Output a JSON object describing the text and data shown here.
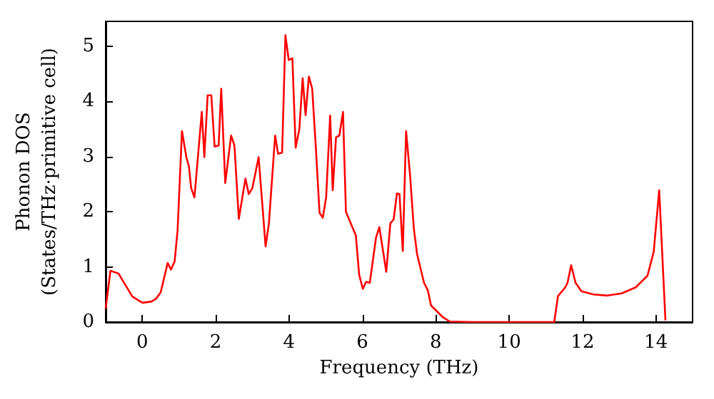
{
  "chart_data": {
    "type": "line",
    "xlabel": "Frequency (THz)",
    "ylabel": "Phonon DOS\n(States/THz·primitive cell)",
    "x": [
      -1.0,
      -0.87,
      -0.65,
      -0.46,
      -0.27,
      0.0,
      0.24,
      0.37,
      0.5,
      0.69,
      0.78,
      0.88,
      0.96,
      1.08,
      1.2,
      1.27,
      1.33,
      1.42,
      1.62,
      1.69,
      1.78,
      1.88,
      1.97,
      2.08,
      2.15,
      2.26,
      2.42,
      2.51,
      2.63,
      2.81,
      2.9,
      3.0,
      3.17,
      3.36,
      3.45,
      3.62,
      3.7,
      3.81,
      3.9,
      3.99,
      4.09,
      4.18,
      4.28,
      4.37,
      4.45,
      4.54,
      4.63,
      4.73,
      4.83,
      4.92,
      5.01,
      5.12,
      5.19,
      5.28,
      5.37,
      5.47,
      5.55,
      5.82,
      5.91,
      6.01,
      6.1,
      6.2,
      6.37,
      6.46,
      6.65,
      6.76,
      6.85,
      6.94,
      7.01,
      7.1,
      7.19,
      7.3,
      7.4,
      7.49,
      7.68,
      7.78,
      7.87,
      8.19,
      8.38,
      9.0,
      10.0,
      11.0,
      11.23,
      11.33,
      11.53,
      11.59,
      11.69,
      11.81,
      11.97,
      12.3,
      12.68,
      13.07,
      13.45,
      13.77,
      13.94,
      14.09,
      14.26
    ],
    "series": [
      {
        "color": "#ff0000",
        "values": [
          0.24,
          0.93,
          0.88,
          0.67,
          0.46,
          0.35,
          0.37,
          0.42,
          0.54,
          1.07,
          0.95,
          1.1,
          1.66,
          3.46,
          2.99,
          2.82,
          2.43,
          2.26,
          3.81,
          2.99,
          4.11,
          4.11,
          3.18,
          3.2,
          4.23,
          2.52,
          3.38,
          3.2,
          1.87,
          2.6,
          2.32,
          2.43,
          2.99,
          1.37,
          1.79,
          3.38,
          3.05,
          3.07,
          5.2,
          4.75,
          4.78,
          3.16,
          3.5,
          4.42,
          3.75,
          4.45,
          4.23,
          3.16,
          1.98,
          1.89,
          2.26,
          3.74,
          2.39,
          3.35,
          3.38,
          3.81,
          2.0,
          1.57,
          0.86,
          0.6,
          0.73,
          0.71,
          1.53,
          1.72,
          0.91,
          1.79,
          1.86,
          2.33,
          2.32,
          1.29,
          3.46,
          2.65,
          1.7,
          1.23,
          0.71,
          0.58,
          0.3,
          0.09,
          0.01,
          0,
          0,
          0,
          0,
          0.47,
          0.63,
          0.71,
          1.03,
          0.71,
          0.56,
          0.5,
          0.48,
          0.52,
          0.63,
          0.84,
          1.27,
          2.39,
          0.03
        ]
      }
    ],
    "xlim": [
      -1,
      15
    ],
    "xticks": [
      0,
      2,
      4,
      6,
      8,
      10,
      12,
      14
    ],
    "ylim": [
      0,
      5.45
    ],
    "yticks": [
      0,
      1,
      2,
      3,
      4,
      5
    ],
    "grid": false,
    "marker": "none",
    "line_style": "solid"
  }
}
